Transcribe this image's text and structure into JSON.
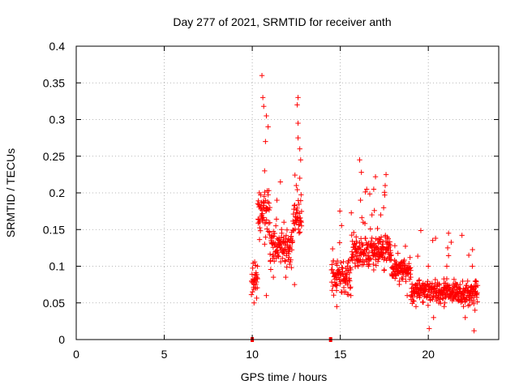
{
  "chart_data": {
    "type": "scatter",
    "title": "Day 277 of 2021, SRMTID for receiver anth",
    "xlabel": "GPS time / hours",
    "ylabel": "SRMTID / TECUs",
    "xlim": [
      0,
      24
    ],
    "ylim": [
      0,
      0.4
    ],
    "x_ticks": [
      0,
      5,
      10,
      15,
      20
    ],
    "x_tick_labels": [
      "0",
      "5",
      "10",
      "15",
      "20"
    ],
    "y_ticks": [
      0,
      0.05,
      0.1,
      0.15,
      0.2,
      0.25,
      0.3,
      0.35,
      0.4
    ],
    "y_tick_labels": [
      "0",
      "0.05",
      "0.1",
      "0.15",
      "0.2",
      "0.25",
      "0.3",
      "0.35",
      "0.4"
    ],
    "grid": true,
    "marker": "+",
    "series": [
      {
        "name": "SRMTID",
        "color": "#ff0000",
        "segments": [
          {
            "x_start": 9.95,
            "x_end": 12.8,
            "seed": 11
          },
          {
            "x_start": 14.5,
            "x_end": 22.8,
            "seed": 29
          }
        ],
        "points": [
          [
            10.55,
            0.36
          ],
          [
            10.6,
            0.33
          ],
          [
            10.65,
            0.318
          ],
          [
            10.8,
            0.305
          ],
          [
            10.9,
            0.29
          ],
          [
            10.75,
            0.27
          ],
          [
            10.7,
            0.23
          ],
          [
            12.6,
            0.33
          ],
          [
            12.55,
            0.32
          ],
          [
            12.6,
            0.295
          ],
          [
            12.6,
            0.275
          ],
          [
            12.7,
            0.26
          ],
          [
            12.75,
            0.245
          ],
          [
            12.7,
            0.22
          ],
          [
            12.5,
            0.21
          ],
          [
            11.6,
            0.215
          ],
          [
            11.4,
            0.19
          ],
          [
            10.4,
            0.2
          ],
          [
            10.5,
            0.18
          ],
          [
            11.0,
            0.18
          ],
          [
            11.5,
            0.13
          ],
          [
            12.1,
            0.12
          ],
          [
            11.2,
            0.085
          ],
          [
            10.2,
            0.07
          ],
          [
            10.1,
            0.05
          ],
          [
            10.3,
            0.1
          ],
          [
            11.8,
            0.16
          ],
          [
            12.2,
            0.14
          ],
          [
            12.8,
            0.155
          ],
          [
            11.9,
            0.085
          ],
          [
            12.4,
            0.075
          ],
          [
            10.8,
            0.06
          ],
          [
            16.1,
            0.245
          ],
          [
            16.2,
            0.228
          ],
          [
            17.6,
            0.225
          ],
          [
            17.0,
            0.222
          ],
          [
            16.9,
            0.205
          ],
          [
            17.55,
            0.21
          ],
          [
            16.5,
            0.205
          ],
          [
            16.15,
            0.19
          ],
          [
            17.3,
            0.17
          ],
          [
            16.8,
            0.17
          ],
          [
            16.3,
            0.16
          ],
          [
            15.9,
            0.14
          ],
          [
            17.8,
            0.13
          ],
          [
            18.1,
            0.128
          ],
          [
            17.2,
            0.12
          ],
          [
            16.6,
            0.1
          ],
          [
            15.4,
            0.1
          ],
          [
            14.9,
            0.09
          ],
          [
            14.7,
            0.075
          ],
          [
            14.8,
            0.045
          ],
          [
            15.6,
            0.06
          ],
          [
            15.3,
            0.065
          ],
          [
            16.9,
            0.095
          ],
          [
            17.5,
            0.095
          ],
          [
            18.4,
            0.1
          ],
          [
            19.0,
            0.085
          ],
          [
            19.5,
            0.075
          ],
          [
            20.0,
            0.1
          ],
          [
            20.2,
            0.07
          ],
          [
            20.3,
            0.03
          ],
          [
            20.05,
            0.015
          ],
          [
            20.9,
            0.045
          ],
          [
            21.1,
            0.125
          ],
          [
            21.15,
            0.145
          ],
          [
            21.05,
            0.1
          ],
          [
            21.6,
            0.075
          ],
          [
            22.0,
            0.06
          ],
          [
            22.3,
            0.115
          ],
          [
            22.5,
            0.1
          ],
          [
            22.7,
            0.08
          ],
          [
            22.65,
            0.04
          ],
          [
            22.6,
            0.012
          ],
          [
            22.1,
            0.03
          ],
          [
            18.8,
            0.06
          ],
          [
            19.3,
            0.045
          ],
          [
            20.6,
            0.05
          ]
        ]
      }
    ],
    "baseline_markers": [
      {
        "x": 10.0,
        "y": 0.0
      },
      {
        "x": 14.45,
        "y": 0.0
      }
    ]
  }
}
